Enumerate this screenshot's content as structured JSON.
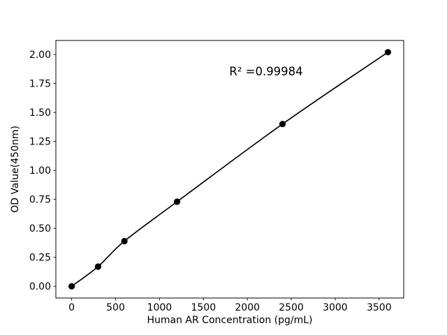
{
  "chart_data": {
    "type": "line",
    "title": "",
    "xlabel": "Human AR Concentration (pg/mL)",
    "ylabel": "OD Value(450nm)",
    "annotation": "R² =0.99984",
    "x": [
      0,
      300,
      600,
      1200,
      2400,
      3600
    ],
    "y": [
      0.0,
      0.17,
      0.39,
      0.73,
      1.4,
      2.02
    ],
    "xticks": [
      0,
      500,
      1000,
      1500,
      2000,
      2500,
      3000,
      3500
    ],
    "ytick_labels": [
      "0.00",
      "0.25",
      "0.50",
      "0.75",
      "1.00",
      "1.25",
      "1.50",
      "1.75",
      "2.00"
    ],
    "xlim": [
      -180,
      3780
    ],
    "ylim": [
      -0.101,
      2.121
    ],
    "grid": false,
    "legend": "none",
    "marker": "circle",
    "line_color": "#000000",
    "marker_color": "#000000",
    "axes_color": "#000000",
    "text_color": "#000000",
    "background": "#ffffff"
  }
}
